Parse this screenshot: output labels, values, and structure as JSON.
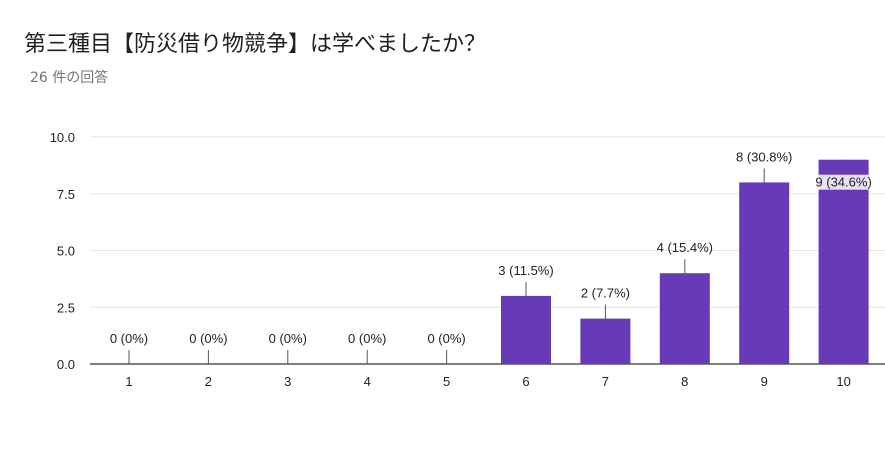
{
  "title": "第三種目【防災借り物競争】は学べましたか？",
  "subtitle": "26 件の回答",
  "colors": {
    "bar": "#673ab7",
    "grid": "#e6e6e6",
    "axis": "#333333",
    "text": "#222222"
  },
  "chart_data": {
    "type": "bar",
    "title": "",
    "xlabel": "",
    "ylabel": "",
    "ylim": [
      0,
      10
    ],
    "yticks": [
      "0.0",
      "2.5",
      "5.0",
      "7.5",
      "10.0"
    ],
    "categories": [
      "1",
      "2",
      "3",
      "4",
      "5",
      "6",
      "7",
      "8",
      "9",
      "10"
    ],
    "values": [
      0,
      0,
      0,
      0,
      0,
      3,
      2,
      4,
      8,
      9
    ],
    "labels": [
      "0 (0%)",
      "0 (0%)",
      "0 (0%)",
      "0 (0%)",
      "0 (0%)",
      "3 (11.5%)",
      "2 (7.7%)",
      "4 (15.4%)",
      "8 (30.8%)",
      "9 (34.6%)"
    ],
    "grid": true,
    "legend": "none"
  }
}
